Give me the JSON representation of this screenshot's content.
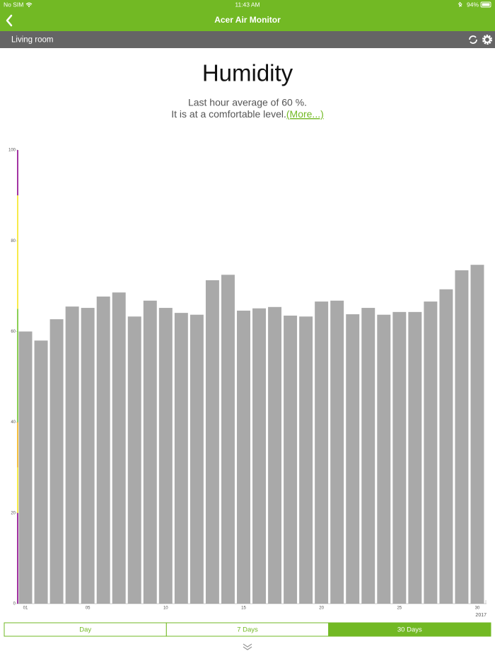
{
  "status_bar": {
    "carrier": "No SIM",
    "time": "11:43 AM",
    "battery": "94%"
  },
  "nav_bar": {
    "title": "Acer Air Monitor"
  },
  "location_bar": {
    "room": "Living room"
  },
  "header": {
    "title": "Humidity",
    "line1": "Last hour average of 60 %.",
    "line2": "It is at a comfortable level.",
    "link": "(More...)"
  },
  "chart_data": {
    "type": "bar",
    "categories": [
      "01",
      null,
      null,
      null,
      "05",
      null,
      null,
      null,
      null,
      "10",
      null,
      null,
      null,
      null,
      "15",
      null,
      null,
      null,
      null,
      "20",
      null,
      null,
      null,
      null,
      "25",
      null,
      null,
      null,
      null,
      "30"
    ],
    "x_axis_year": "2017",
    "values": [
      60.0,
      58.0,
      62.7,
      65.5,
      65.2,
      67.7,
      68.6,
      63.3,
      66.8,
      65.2,
      64.1,
      63.7,
      71.3,
      72.5,
      64.6,
      65.1,
      65.4,
      63.5,
      63.3,
      66.6,
      66.8,
      63.8,
      65.2,
      63.7,
      64.3,
      64.3,
      66.6,
      69.3,
      73.5,
      74.7
    ],
    "color": "#a9a9a9",
    "ylim": [
      0,
      100
    ],
    "yticks": [
      0,
      20,
      40,
      60,
      80,
      100
    ],
    "grid": false,
    "zones": [
      {
        "from": 0,
        "to": 20,
        "color": "#8b008b"
      },
      {
        "from": 20,
        "to": 30,
        "color": "#f5e61e"
      },
      {
        "from": 30,
        "to": 40,
        "color": "#f2b10f"
      },
      {
        "from": 40,
        "to": 65,
        "color": "#6fc32a"
      },
      {
        "from": 65,
        "to": 90,
        "color": "#f5e61e"
      },
      {
        "from": 90,
        "to": 100,
        "color": "#8b008b"
      }
    ]
  },
  "tabs": {
    "items": [
      "Day",
      "7 Days",
      "30 Days"
    ],
    "selected": 2
  }
}
